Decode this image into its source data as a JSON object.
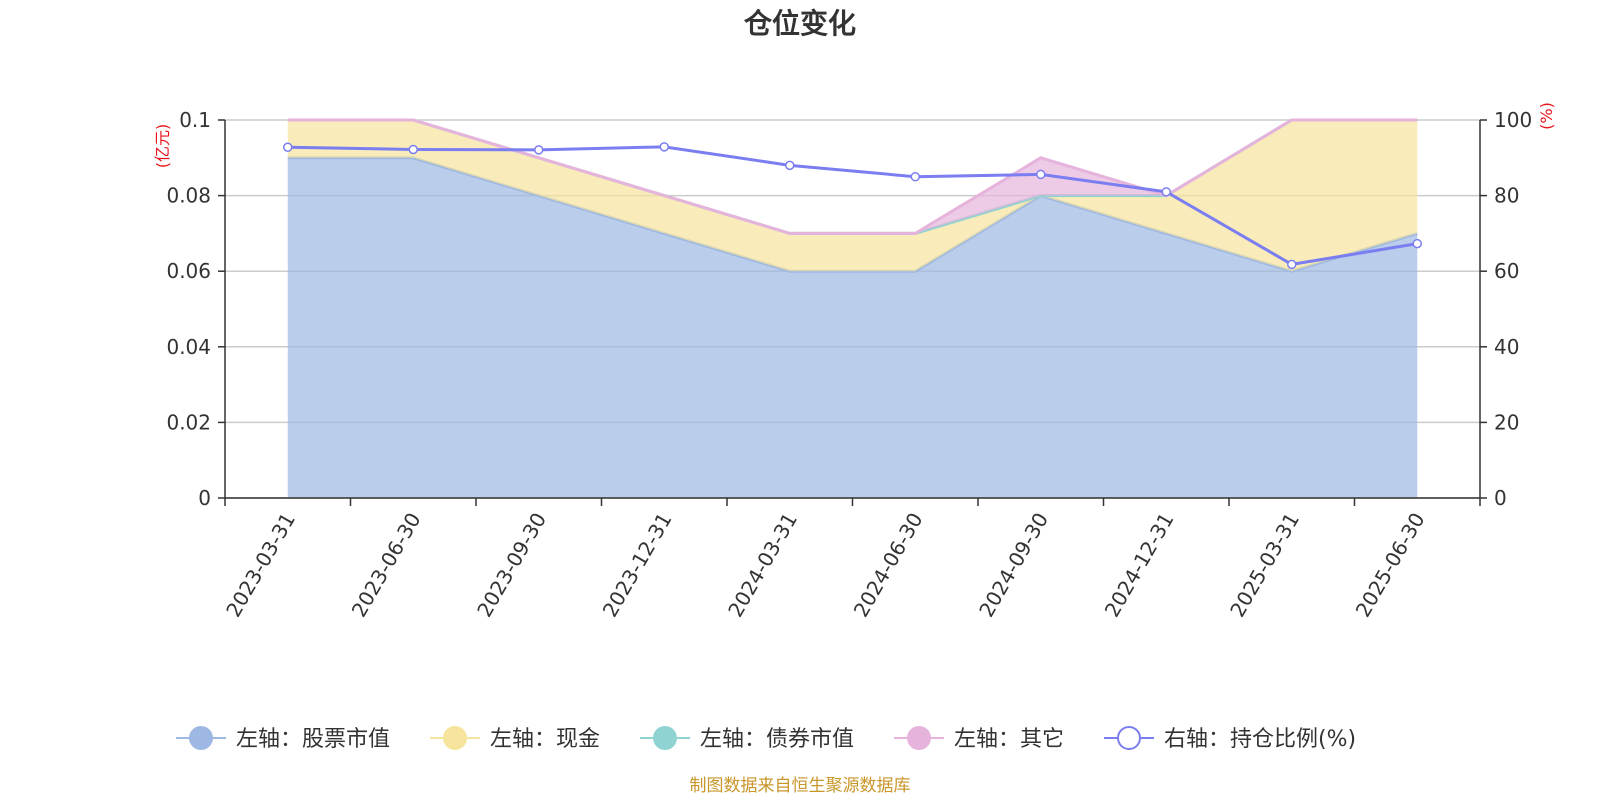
{
  "title": "仓位变化",
  "source": "制图数据来自恒生聚源数据库",
  "colors": {
    "stock": "#9db8e2",
    "cash": "#f7e49c",
    "bond": "#8fd3d3",
    "other": "#e6b3dc",
    "ratio": "#7b7ef0",
    "unit": "#e8141c",
    "source": "#c9962a"
  },
  "legend": [
    {
      "label": "左轴：股票市值",
      "color": "#9db8e2",
      "marker": "filled-circle"
    },
    {
      "label": "左轴：现金",
      "color": "#f7e49c",
      "marker": "filled-circle"
    },
    {
      "label": "左轴：债券市值",
      "color": "#8fd3d3",
      "marker": "filled-circle"
    },
    {
      "label": "左轴：其它",
      "color": "#e6b3dc",
      "marker": "filled-circle"
    },
    {
      "label": "右轴：持仓比例(%)",
      "color": "#7b7ef0",
      "marker": "hollow-circle"
    }
  ],
  "chart_data": {
    "type": "area",
    "title": "仓位变化",
    "categories": [
      "2023-03-31",
      "2023-06-30",
      "2023-09-30",
      "2023-12-31",
      "2024-03-31",
      "2024-06-30",
      "2024-09-30",
      "2024-12-31",
      "2025-03-31",
      "2025-06-30"
    ],
    "left_axis": {
      "unit": "(亿元)",
      "min": 0,
      "max": 0.1,
      "ticks": [
        "0",
        "0.02",
        "0.04",
        "0.06",
        "0.08",
        "0.1"
      ]
    },
    "right_axis": {
      "unit": "(%)",
      "min": 0,
      "max": 100,
      "ticks": [
        "0",
        "20",
        "40",
        "60",
        "80",
        "100"
      ]
    },
    "series": [
      {
        "name": "左轴：股票市值",
        "axis": "left",
        "stacked": true,
        "values": [
          0.09,
          0.09,
          0.08,
          0.07,
          0.06,
          0.06,
          0.08,
          0.07,
          0.06,
          0.07
        ]
      },
      {
        "name": "左轴：现金",
        "axis": "left",
        "stacked": true,
        "values": [
          0.01,
          0.01,
          0.01,
          0.01,
          0.01,
          0.01,
          0.0,
          0.01,
          0.04,
          0.03
        ]
      },
      {
        "name": "左轴：债券市值",
        "axis": "left",
        "stacked": true,
        "values": [
          0,
          0,
          0,
          0,
          0,
          0,
          0,
          0,
          0,
          0
        ]
      },
      {
        "name": "左轴：其它",
        "axis": "left",
        "stacked": true,
        "values": [
          0,
          0,
          0,
          0,
          0,
          0,
          0.01,
          0,
          0,
          0
        ]
      },
      {
        "name": "右轴：持仓比例(%)",
        "axis": "right",
        "type": "line",
        "values": [
          92.8,
          92.2,
          92.1,
          92.9,
          88.0,
          85.0,
          85.6,
          81.0,
          61.8,
          67.3
        ]
      }
    ],
    "grid": true,
    "legend_position": "bottom"
  }
}
